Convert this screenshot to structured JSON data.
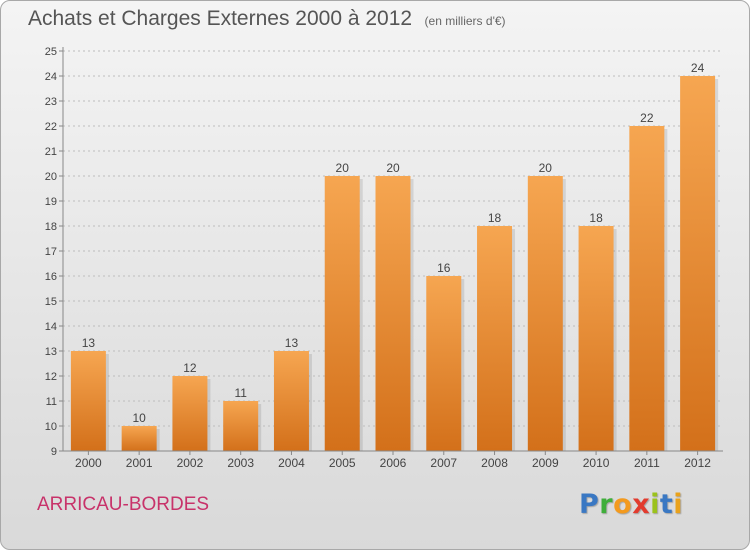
{
  "header": {
    "title": "Achats et Charges Externes 2000 à 2012",
    "unit": "(en milliers d'€)"
  },
  "footer": {
    "commune": "ARRICAU-BORDES",
    "logo": {
      "letters": [
        "P",
        "r",
        "o",
        "x",
        "i",
        "t",
        "i"
      ],
      "colors": [
        "#3a78c3",
        "#3fae3a",
        "#f39a1e",
        "#e23b2e",
        "#9bc21c",
        "#3a78c3",
        "#e9a21c"
      ]
    }
  },
  "colors": {
    "bar_light": "#f6a651",
    "bar_dark": "#d3701a",
    "axis": "#888888",
    "grid": "#bdbdbd"
  },
  "chart_data": {
    "type": "bar",
    "title": "Achats et Charges Externes 2000 à 2012",
    "categories": [
      "2000",
      "2001",
      "2002",
      "2003",
      "2004",
      "2005",
      "2006",
      "2007",
      "2008",
      "2009",
      "2010",
      "2011",
      "2012"
    ],
    "values": [
      13,
      10,
      12,
      11,
      13,
      20,
      20,
      16,
      18,
      20,
      18,
      22,
      24
    ],
    "ylim": [
      9,
      25
    ],
    "yticks": [
      9,
      10,
      11,
      12,
      13,
      14,
      15,
      16,
      17,
      18,
      19,
      20,
      21,
      22,
      23,
      24,
      25
    ],
    "grid": true
  }
}
